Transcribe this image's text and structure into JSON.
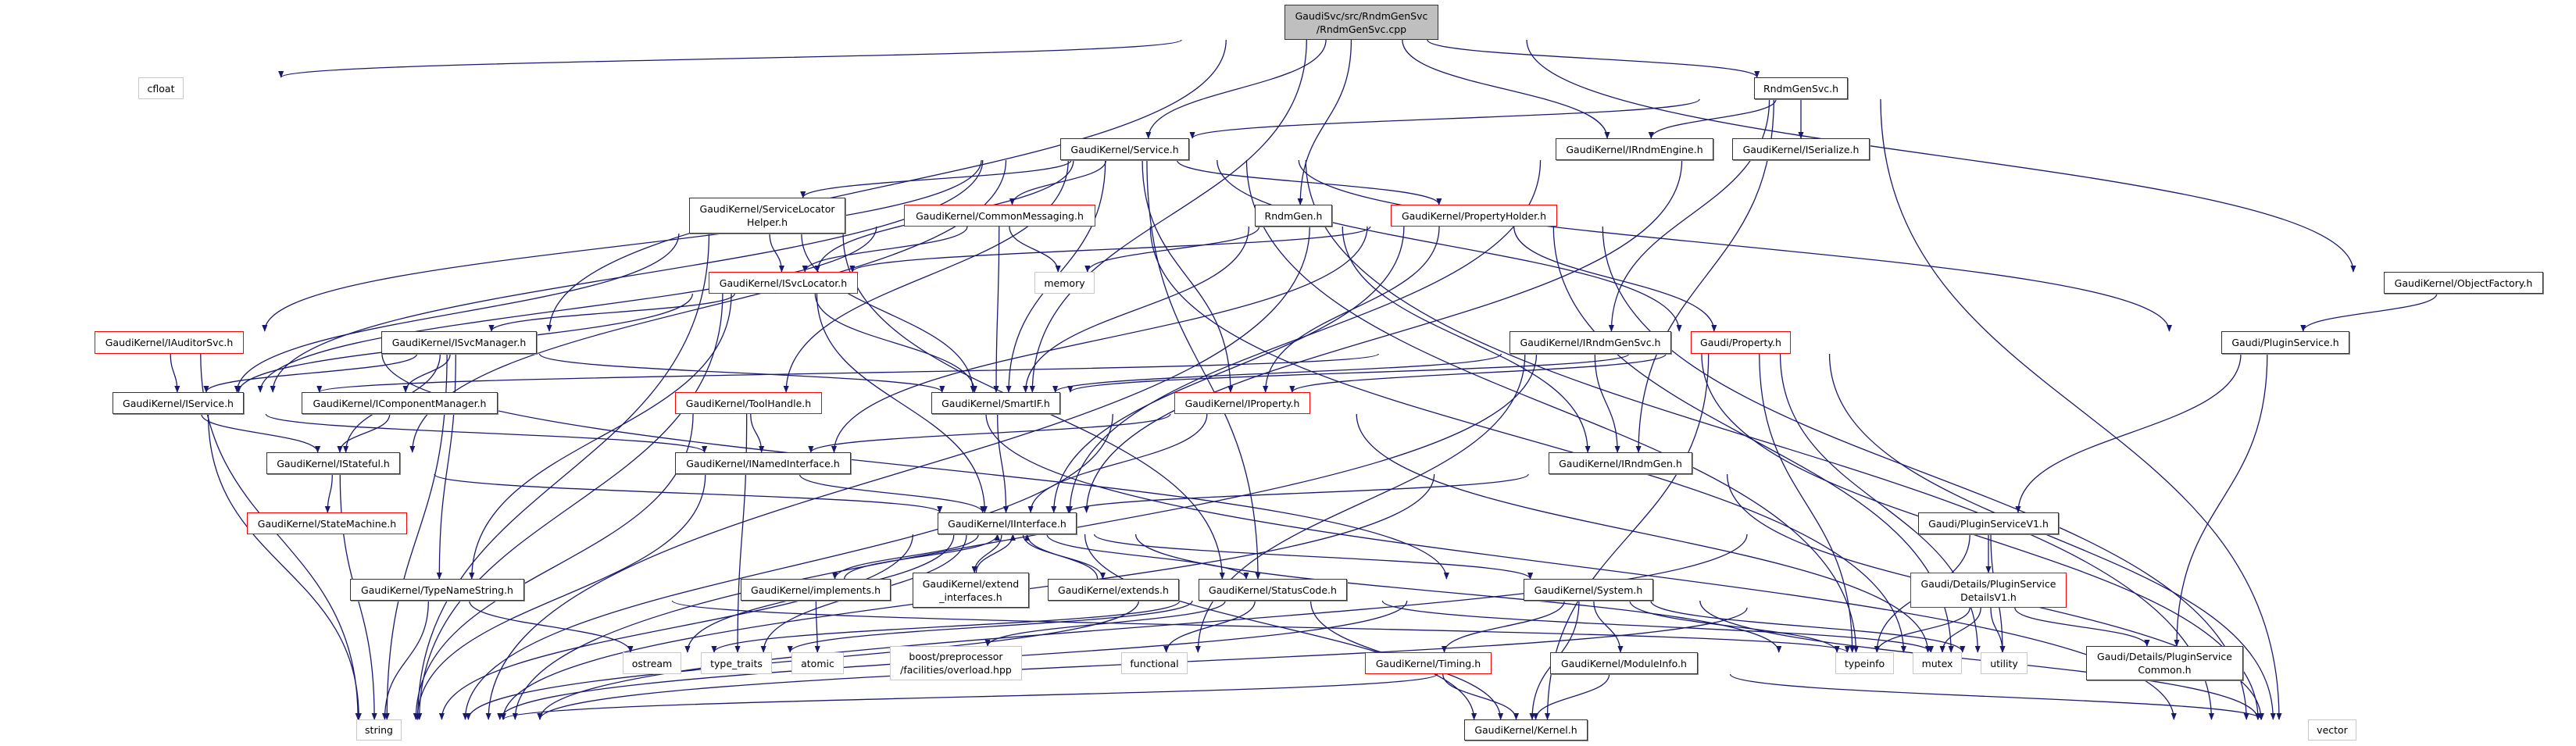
{
  "graph": {
    "edge_color": "#191970",
    "border_colors": {
      "normal": "#333333",
      "red": "#ff0000",
      "system": "#c8c8c8",
      "root_fill": "#bfbfbf"
    },
    "nodes": {
      "root": {
        "label": "GaudiSvc/src/RndmGenSvc\n/RndmGenSvc.cpp",
        "style": "root"
      },
      "cfloat": {
        "label": "cfloat",
        "style": "system"
      },
      "rndmgensvc_h": {
        "label": "RndmGenSvc.h",
        "style": "normal"
      },
      "service": {
        "label": "GaudiKernel/Service.h",
        "style": "normal"
      },
      "irndmengine": {
        "label": "GaudiKernel/IRndmEngine.h",
        "style": "normal"
      },
      "iserialize": {
        "label": "GaudiKernel/ISerialize.h",
        "style": "normal"
      },
      "slhelper": {
        "label": "GaudiKernel/ServiceLocator\nHelper.h",
        "style": "normal"
      },
      "commonmsg": {
        "label": "GaudiKernel/CommonMessaging.h",
        "style": "red"
      },
      "rndmgen_h": {
        "label": "RndmGen.h",
        "style": "normal"
      },
      "propholder": {
        "label": "GaudiKernel/PropertyHolder.h",
        "style": "red"
      },
      "objfactory": {
        "label": "GaudiKernel/ObjectFactory.h",
        "style": "normal"
      },
      "isvclocator": {
        "label": "GaudiKernel/ISvcLocator.h",
        "style": "red"
      },
      "memory": {
        "label": "memory",
        "style": "system"
      },
      "iauditorsvc": {
        "label": "GaudiKernel/IAuditorSvc.h",
        "style": "red"
      },
      "isvcmanager": {
        "label": "GaudiKernel/ISvcManager.h",
        "style": "normal"
      },
      "irndmgensvc": {
        "label": "GaudiKernel/IRndmGenSvc.h",
        "style": "normal"
      },
      "property": {
        "label": "Gaudi/Property.h",
        "style": "red"
      },
      "pluginservice": {
        "label": "Gaudi/PluginService.h",
        "style": "normal"
      },
      "iservice": {
        "label": "GaudiKernel/IService.h",
        "style": "normal"
      },
      "icompmgr": {
        "label": "GaudiKernel/IComponentManager.h",
        "style": "normal"
      },
      "toolhandle": {
        "label": "GaudiKernel/ToolHandle.h",
        "style": "red"
      },
      "smartif": {
        "label": "GaudiKernel/SmartIF.h",
        "style": "normal"
      },
      "iproperty": {
        "label": "GaudiKernel/IProperty.h",
        "style": "red"
      },
      "istateful": {
        "label": "GaudiKernel/IStateful.h",
        "style": "normal"
      },
      "inamedif": {
        "label": "GaudiKernel/INamedInterface.h",
        "style": "normal"
      },
      "irndmgen": {
        "label": "GaudiKernel/IRndmGen.h",
        "style": "normal"
      },
      "statemachine": {
        "label": "GaudiKernel/StateMachine.h",
        "style": "red"
      },
      "iinterface": {
        "label": "GaudiKernel/IInterface.h",
        "style": "normal"
      },
      "psv1": {
        "label": "Gaudi/PluginServiceV1.h",
        "style": "normal"
      },
      "typenamestring": {
        "label": "GaudiKernel/TypeNameString.h",
        "style": "normal"
      },
      "implements": {
        "label": "GaudiKernel/implements.h",
        "style": "normal"
      },
      "extendif": {
        "label": "GaudiKernel/extend\n_interfaces.h",
        "style": "normal"
      },
      "extends": {
        "label": "GaudiKernel/extends.h",
        "style": "normal"
      },
      "statuscode": {
        "label": "GaudiKernel/StatusCode.h",
        "style": "normal"
      },
      "system": {
        "label": "GaudiKernel/System.h",
        "style": "normal"
      },
      "detailsv1": {
        "label": "Gaudi/Details/PluginService\nDetailsV1.h",
        "style": "red"
      },
      "ostream": {
        "label": "ostream",
        "style": "system"
      },
      "type_traits": {
        "label": "type_traits",
        "style": "system"
      },
      "atomic": {
        "label": "atomic",
        "style": "system"
      },
      "boost": {
        "label": "boost/preprocessor\n/facilities/overload.hpp",
        "style": "system"
      },
      "functional": {
        "label": "functional",
        "style": "system"
      },
      "timing": {
        "label": "GaudiKernel/Timing.h",
        "style": "red"
      },
      "moduleinfo": {
        "label": "GaudiKernel/ModuleInfo.h",
        "style": "normal"
      },
      "typeinfo": {
        "label": "typeinfo",
        "style": "system"
      },
      "mutex": {
        "label": "mutex",
        "style": "system"
      },
      "utility": {
        "label": "utility",
        "style": "system"
      },
      "pscommon": {
        "label": "Gaudi/Details/PluginService\nCommon.h",
        "style": "normal"
      },
      "string": {
        "label": "string",
        "style": "system"
      },
      "kernel": {
        "label": "GaudiKernel/Kernel.h",
        "style": "normal"
      },
      "vector": {
        "label": "vector",
        "style": "system"
      }
    },
    "edges": [
      [
        "root",
        "cfloat"
      ],
      [
        "root",
        "service"
      ],
      [
        "root",
        "isvcmanager"
      ],
      [
        "root",
        "rndmgen_h"
      ],
      [
        "root",
        "smartif"
      ],
      [
        "root",
        "irndmengine"
      ],
      [
        "root",
        "rndmgensvc_h"
      ],
      [
        "root",
        "objfactory"
      ],
      [
        "rndmgensvc_h",
        "service"
      ],
      [
        "rndmgensvc_h",
        "irndmengine"
      ],
      [
        "rndmgensvc_h",
        "iserialize"
      ],
      [
        "rndmgensvc_h",
        "irndmgensvc"
      ],
      [
        "rndmgensvc_h",
        "irndmgen"
      ],
      [
        "rndmgensvc_h",
        "vector"
      ],
      [
        "service",
        "iauditorsvc"
      ],
      [
        "service",
        "iservice"
      ],
      [
        "service",
        "slhelper"
      ],
      [
        "service",
        "isvclocator"
      ],
      [
        "service",
        "commonmsg"
      ],
      [
        "service",
        "smartif"
      ],
      [
        "service",
        "iproperty"
      ],
      [
        "service",
        "propholder"
      ],
      [
        "service",
        "property"
      ],
      [
        "service",
        "toolhandle"
      ],
      [
        "service",
        "istateful"
      ],
      [
        "service",
        "statuscode"
      ],
      [
        "service",
        "pluginservice"
      ],
      [
        "service",
        "vector"
      ],
      [
        "service",
        "mutex"
      ],
      [
        "slhelper",
        "isvclocator"
      ],
      [
        "slhelper",
        "iservice"
      ],
      [
        "slhelper",
        "smartif"
      ],
      [
        "slhelper",
        "string"
      ],
      [
        "slhelper",
        "statuscode"
      ],
      [
        "commonmsg",
        "isvclocator"
      ],
      [
        "commonmsg",
        "iservice"
      ],
      [
        "commonmsg",
        "smartif"
      ],
      [
        "commonmsg",
        "memory"
      ],
      [
        "commonmsg",
        "utility"
      ],
      [
        "rndmgen_h",
        "memory"
      ],
      [
        "rndmgen_h",
        "smartif"
      ],
      [
        "rndmgen_h",
        "irndmgen"
      ],
      [
        "propholder",
        "isvclocator"
      ],
      [
        "propholder",
        "iproperty"
      ],
      [
        "propholder",
        "property"
      ],
      [
        "propholder",
        "inamedif"
      ],
      [
        "propholder",
        "string"
      ],
      [
        "propholder",
        "utility"
      ],
      [
        "propholder",
        "vector"
      ],
      [
        "propholder",
        "iinterface"
      ],
      [
        "isvclocator",
        "isvcmanager"
      ],
      [
        "isvclocator",
        "smartif"
      ],
      [
        "isvclocator",
        "iinterface"
      ],
      [
        "isvclocator",
        "typenamestring"
      ],
      [
        "isvclocator",
        "string"
      ],
      [
        "isvclocator",
        "iservice"
      ],
      [
        "iauditorsvc",
        "iservice"
      ],
      [
        "iauditorsvc",
        "string"
      ],
      [
        "iauditorsvc",
        "system"
      ],
      [
        "isvcmanager",
        "iservice"
      ],
      [
        "isvcmanager",
        "icompmgr"
      ],
      [
        "isvcmanager",
        "istateful"
      ],
      [
        "isvcmanager",
        "string"
      ],
      [
        "isvcmanager",
        "typenamestring"
      ],
      [
        "isvcmanager",
        "smartif"
      ],
      [
        "iservice",
        "istateful"
      ],
      [
        "iservice",
        "inamedif"
      ],
      [
        "iservice",
        "string"
      ],
      [
        "icompmgr",
        "istateful"
      ],
      [
        "toolhandle",
        "inamedif"
      ],
      [
        "toolhandle",
        "type_traits"
      ],
      [
        "toolhandle",
        "string"
      ],
      [
        "toolhandle",
        "vector"
      ],
      [
        "istateful",
        "statemachine"
      ],
      [
        "istateful",
        "iinterface"
      ],
      [
        "istateful",
        "string"
      ],
      [
        "inamedif",
        "iinterface"
      ],
      [
        "inamedif",
        "string"
      ],
      [
        "irndmgensvc",
        "iservice"
      ],
      [
        "irndmgensvc",
        "smartif"
      ],
      [
        "irndmgensvc",
        "irndmgen"
      ],
      [
        "irndmgensvc",
        "vector"
      ],
      [
        "irndmgensvc",
        "functional"
      ],
      [
        "property",
        "smartif"
      ],
      [
        "property",
        "iproperty"
      ],
      [
        "property",
        "kernel"
      ],
      [
        "property",
        "typeinfo"
      ],
      [
        "property",
        "utility"
      ],
      [
        "property",
        "string"
      ],
      [
        "property",
        "vector"
      ],
      [
        "iproperty",
        "inamedif"
      ],
      [
        "iproperty",
        "iinterface"
      ],
      [
        "iproperty",
        "string"
      ],
      [
        "iproperty",
        "utility"
      ],
      [
        "smartif",
        "iinterface"
      ],
      [
        "irndmengine",
        "iinterface"
      ],
      [
        "iserialize",
        "iinterface"
      ],
      [
        "irndmgen",
        "iinterface"
      ],
      [
        "irndmgen",
        "vector"
      ],
      [
        "irndmgen",
        "string"
      ],
      [
        "iinterface",
        "implements"
      ],
      [
        "iinterface",
        "extendif"
      ],
      [
        "iinterface",
        "extends"
      ],
      [
        "iinterface",
        "statuscode"
      ],
      [
        "iinterface",
        "system"
      ],
      [
        "iinterface",
        "ostream"
      ],
      [
        "iinterface",
        "type_traits"
      ],
      [
        "iinterface",
        "typeinfo"
      ],
      [
        "iinterface",
        "kernel"
      ],
      [
        "iinterface",
        "string"
      ],
      [
        "implements",
        "iinterface"
      ],
      [
        "implements",
        "atomic"
      ],
      [
        "extendif",
        "iinterface"
      ],
      [
        "extends",
        "iinterface"
      ],
      [
        "statuscode",
        "boost"
      ],
      [
        "statuscode",
        "functional"
      ],
      [
        "statuscode",
        "ostream"
      ],
      [
        "statuscode",
        "type_traits"
      ],
      [
        "statuscode",
        "utility"
      ],
      [
        "statuscode",
        "kernel"
      ],
      [
        "statuscode",
        "string"
      ],
      [
        "system",
        "timing"
      ],
      [
        "system",
        "moduleinfo"
      ],
      [
        "system",
        "kernel"
      ],
      [
        "system",
        "typeinfo"
      ],
      [
        "system",
        "vector"
      ],
      [
        "system",
        "string"
      ],
      [
        "system",
        "utility"
      ],
      [
        "typenamestring",
        "string"
      ],
      [
        "typenamestring",
        "ostream"
      ],
      [
        "typenamestring",
        "utility"
      ],
      [
        "timing",
        "kernel"
      ],
      [
        "moduleinfo",
        "kernel"
      ],
      [
        "moduleinfo",
        "string"
      ],
      [
        "moduleinfo",
        "vector"
      ],
      [
        "objfactory",
        "pluginservice"
      ],
      [
        "pluginservice",
        "psv1"
      ],
      [
        "pluginservice",
        "pscommon"
      ],
      [
        "psv1",
        "detailsv1"
      ],
      [
        "psv1",
        "typeinfo"
      ],
      [
        "psv1",
        "utility"
      ],
      [
        "psv1",
        "string"
      ],
      [
        "detailsv1",
        "typeinfo"
      ],
      [
        "detailsv1",
        "mutex"
      ],
      [
        "detailsv1",
        "utility"
      ],
      [
        "detailsv1",
        "pscommon"
      ],
      [
        "detailsv1",
        "string"
      ]
    ]
  }
}
